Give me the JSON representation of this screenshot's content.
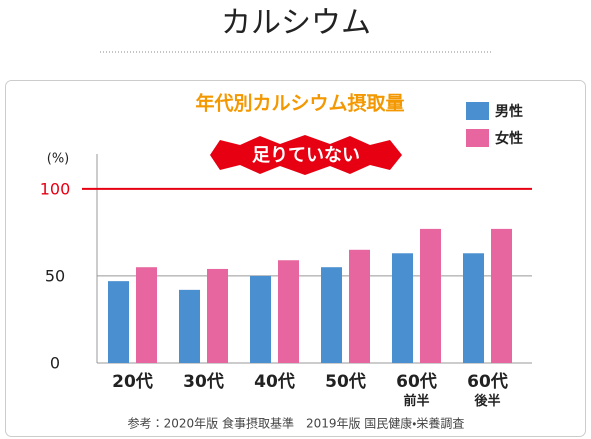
{
  "page_title": "カルシウム",
  "chart_data": {
    "type": "bar",
    "title": "年代別カルシウム摂取量",
    "badge": "足りていない",
    "y_unit": "(%)",
    "categories": [
      "20代",
      "30代",
      "40代",
      "50代",
      "60代\n前半",
      "60代\n後半"
    ],
    "series": [
      {
        "name": "男性",
        "color": "#4a90d0",
        "values": [
          47,
          42,
          50,
          55,
          63,
          63
        ]
      },
      {
        "name": "女性",
        "color": "#e8669f",
        "values": [
          55,
          54,
          59,
          65,
          77,
          77
        ]
      }
    ],
    "ylim": [
      0,
      120
    ],
    "yticks": [
      0,
      50,
      100
    ],
    "grid": true,
    "reference_line": {
      "value": 100,
      "color": "#e60012"
    },
    "source": "参考：2020年版 食事摂取基準　2019年版 国民健康・栄養調査"
  }
}
